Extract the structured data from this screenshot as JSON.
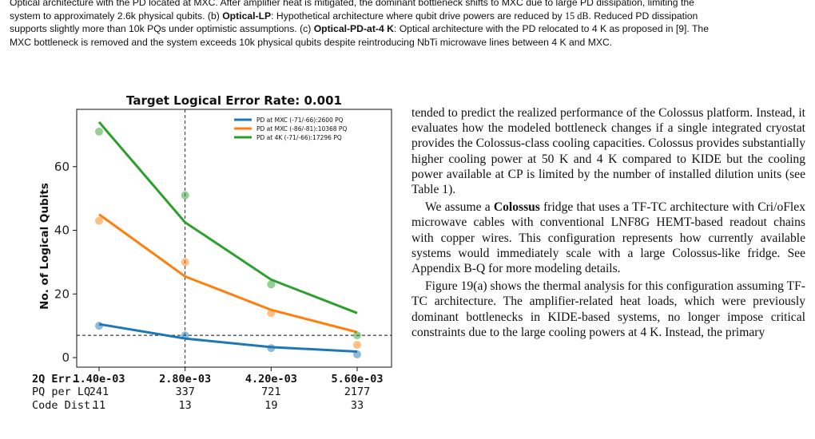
{
  "caption": {
    "line1": "Optical architecture with the PD located at MXC. After amplifier heat is mitigated, the dominant bottleneck shifts to MXC due to large PD dissipation, limiting the",
    "line2": "system to approximately 2.6k physical qubits. (b) ",
    "lp_term": "Optical-LP",
    "line2b": ": Hypothetical architecture where qubit drive powers are reduced by ",
    "db_value": "15 dB",
    "line2c": ". Reduced PD dissipation",
    "line3": "supports slightly more than 10k PQs under optimistic assumptions. (c) ",
    "pd4k_term": "Optical-PD-at-4 K",
    "line3b": ": Optical architecture with the PD relocated to 4 K as proposed in [9]. The",
    "line4": "MXC bottleneck is removed and the system exceeds 10k physical qubits despite reintroducing NbTi microwave lines between 4 K and MXC."
  },
  "body_text": {
    "para1": "tended to predict the realized performance of the Colossus platform. Instead, it evaluates how the modeled bottleneck changes if a single integrated cryostat provides the Colossus-class cooling capacities. Colossus provides substantially higher cooling power at 50 K and 4 K compared to KIDE but the cooling power available at CP is limited by the number of installed dilution units (see Table 1).",
    "para2_pre": "We assume a ",
    "para2_bold": "Colossus",
    "para2_post": " fridge that uses a TF-TC architecture with Cri/oFlex microwave cables with conventional LNF8G HEMT-based readout chains with copper wires. This configuration represents how currently available systems would immediately scale with a large Colossus-like fridge. See Appendix B-Q for more modeling details.",
    "para3": "Figure 19(a) shows the thermal analysis for this configuration assuming TF-TC architecture. The amplifier-related heat loads, which were previously dominant bottlenecks in KIDE-based systems, no longer impose critical constraints due to the large cooling powers at 4 K. Instead, the primary"
  },
  "chart_data": {
    "type": "line",
    "title": "Target Logical Error Rate: 0.001",
    "ylabel": "No. of Logical Qubits",
    "xlabel": "",
    "categories": [
      "1.40e-03",
      "2.80e-03",
      "4.20e-03",
      "5.60e-03"
    ],
    "ylim": [
      -3,
      78
    ],
    "yticks": [
      0,
      20,
      40,
      60
    ],
    "grid": false,
    "legend_position": "top-right",
    "series": [
      {
        "name": "PD at MXC (-71/-66):2600 PQ",
        "color": "#1f77b4",
        "fit": [
          10.5,
          6.0,
          3.3,
          1.9
        ],
        "points": [
          10,
          7,
          3,
          1
        ]
      },
      {
        "name": "PD at MXC (-86/-81):10368 PQ",
        "color": "#ff7f0e",
        "fit": [
          45,
          25.5,
          15,
          8
        ],
        "points": [
          43,
          30,
          14,
          4
        ]
      },
      {
        "name": "PD at 4K (-71/-66):17296 PQ",
        "color": "#2ca02c",
        "fit": [
          74,
          42.5,
          24.5,
          14
        ],
        "points": [
          71,
          51,
          23,
          7
        ]
      }
    ],
    "reference_lines": {
      "vertical_category": "2.80e-03",
      "horizontal_y": 7
    },
    "table": {
      "rows": [
        {
          "label": "2Q Err.",
          "values": [
            "1.40e-03",
            "2.80e-03",
            "4.20e-03",
            "5.60e-03"
          ],
          "bold": true
        },
        {
          "label": "PQ per LQ",
          "values": [
            "241",
            "337",
            "721",
            "2177"
          ],
          "bold": false
        },
        {
          "label": "Code Dist.",
          "values": [
            "11",
            "13",
            "19",
            "33"
          ],
          "bold": false
        }
      ]
    }
  },
  "colors": {
    "blue": "#1f77b4",
    "orange": "#ff7f0e",
    "green": "#2ca02c"
  }
}
